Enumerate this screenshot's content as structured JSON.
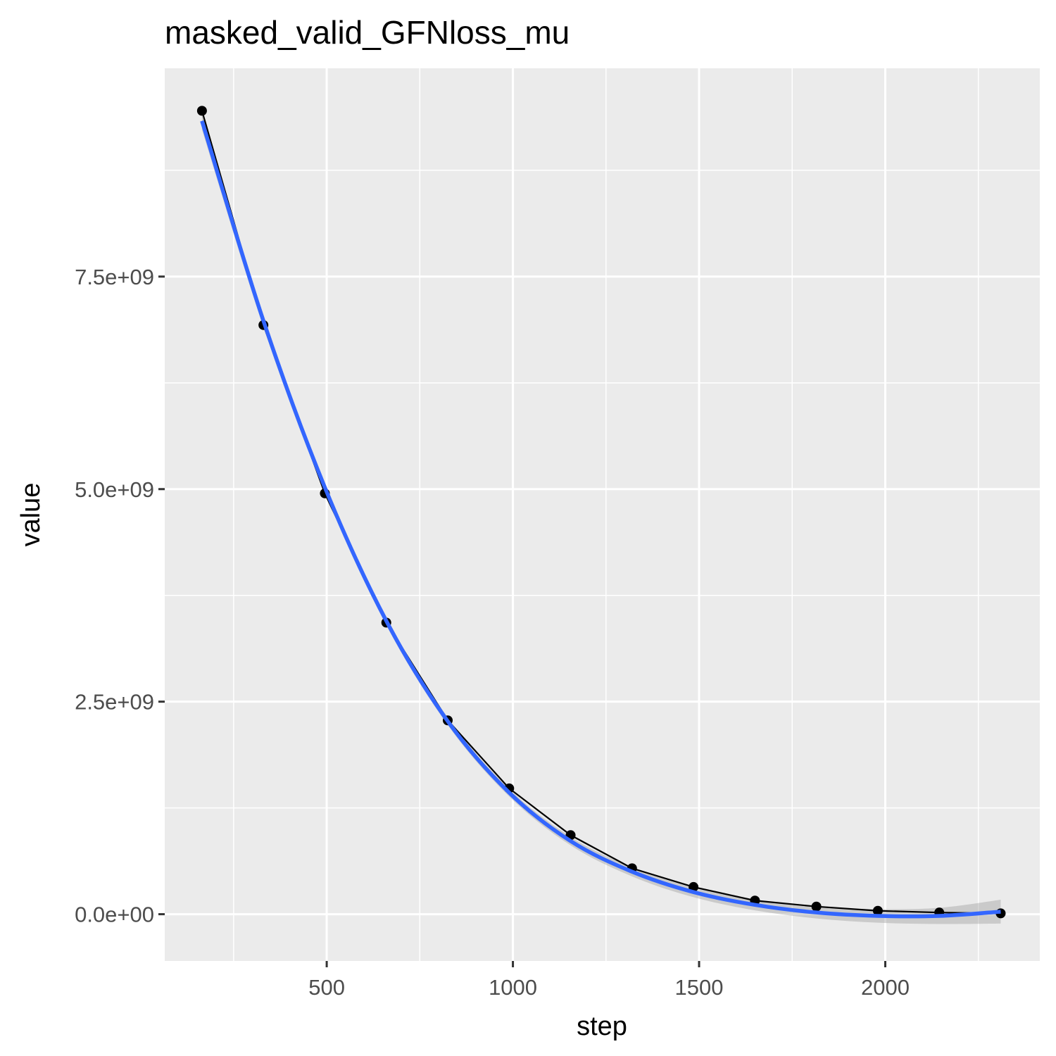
{
  "chart_data": {
    "type": "line",
    "title": "masked_valid_GFNloss_mu",
    "xlabel": "step",
    "ylabel": "value",
    "xlim": [
      65,
      2415
    ],
    "ylim": [
      -550000000,
      9950000000
    ],
    "x_ticks": [
      500,
      1000,
      1500,
      2000
    ],
    "x_tick_labels": [
      "500",
      "1000",
      "1500",
      "2000"
    ],
    "x_minor_ticks": [
      250,
      750,
      1250,
      1750,
      2250
    ],
    "y_ticks": [
      0,
      2500000000,
      5000000000,
      7500000000
    ],
    "y_tick_labels": [
      "0.0e+00",
      "2.5e+09",
      "5.0e+09",
      "7.5e+09"
    ],
    "y_minor_ticks": [
      1250000000,
      3750000000,
      6250000000,
      8750000000
    ],
    "grid": true,
    "series": [
      {
        "kind": "points-with-line",
        "color": "#000000",
        "x": [
          165,
          330,
          495,
          660,
          825,
          990,
          1155,
          1320,
          1485,
          1650,
          1815,
          1980,
          2145,
          2310
        ],
        "y": [
          9450000000,
          6930000000,
          4950000000,
          3430000000,
          2280000000,
          1480000000,
          930000000,
          540000000,
          320000000,
          160000000,
          90000000,
          40000000,
          20000000,
          10000000
        ]
      },
      {
        "kind": "smooth",
        "color": "#3366ff",
        "band_color": "#999999",
        "x": [
          165,
          330,
          495,
          660,
          825,
          990,
          1155,
          1320,
          1485,
          1650,
          1815,
          1980,
          2145,
          2310
        ],
        "y": [
          9330000000,
          6980000000,
          5020000000,
          3450000000,
          2270000000,
          1430000000,
          860000000,
          500000000,
          260000000,
          110000000,
          20000000,
          -20000000,
          -20000000,
          30000000
        ],
        "band_halfwidth": [
          100000000,
          75000000,
          60000000,
          50000000,
          45000000,
          45000000,
          50000000,
          55000000,
          60000000,
          65000000,
          70000000,
          80000000,
          95000000,
          140000000
        ]
      }
    ]
  }
}
